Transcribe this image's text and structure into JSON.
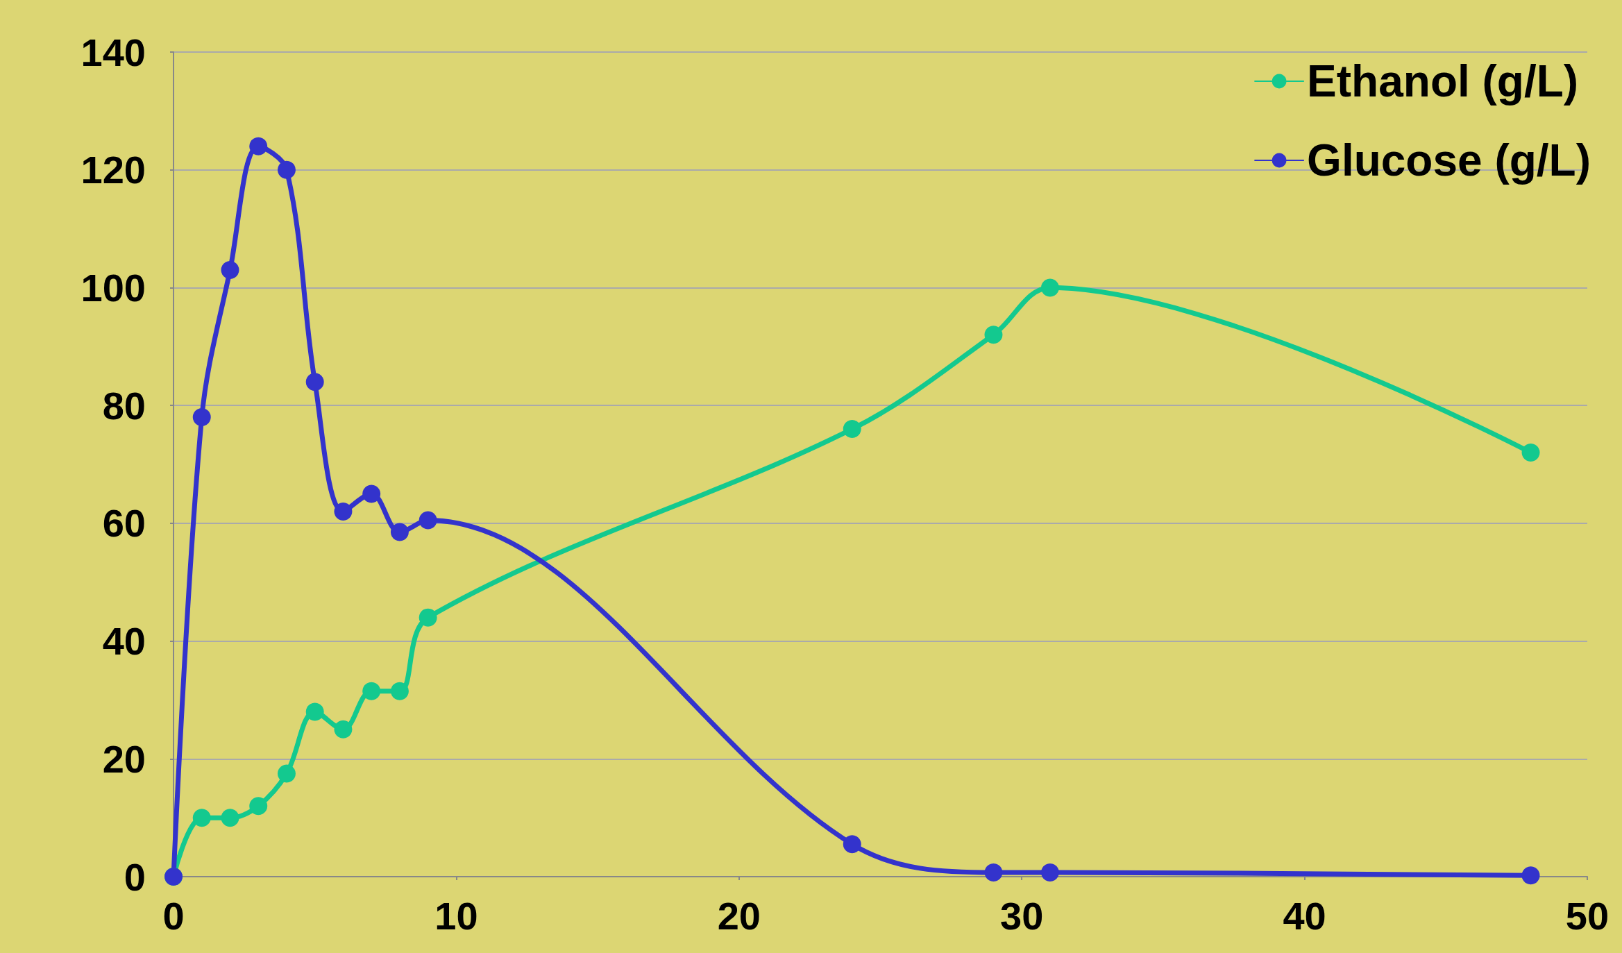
{
  "chart_data": {
    "type": "line",
    "xlim": [
      0,
      50
    ],
    "xticks": [
      0,
      10,
      20,
      30,
      40,
      50
    ],
    "ylim": [
      0,
      140
    ],
    "yticks": [
      0,
      20,
      40,
      60,
      80,
      100,
      120,
      140
    ],
    "grid": "y",
    "legend": "top right",
    "marker": "circle",
    "line_style": "solid",
    "series": [
      {
        "name": "Ethanol (g/L)",
        "color": "#13c98f",
        "x": [
          0,
          1,
          2,
          3,
          4,
          5,
          6,
          7,
          8,
          9,
          24,
          29,
          31,
          48
        ],
        "values": [
          0,
          10,
          10,
          12,
          17.5,
          28,
          25,
          31.5,
          31.5,
          44,
          76,
          92,
          100,
          72
        ]
      },
      {
        "name": "Glucose (g/L)",
        "color": "#3333cc",
        "x": [
          0,
          1,
          2,
          3,
          4,
          5,
          6,
          7,
          8,
          9,
          24,
          29,
          31,
          48
        ],
        "values": [
          0,
          78,
          103,
          124,
          120,
          84,
          62,
          65,
          58.5,
          60.5,
          5.5,
          0.7,
          0.7,
          0.2
        ]
      }
    ]
  }
}
